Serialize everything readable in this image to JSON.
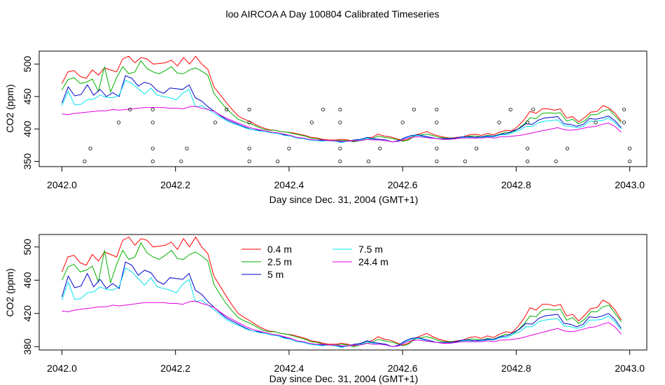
{
  "title": "loo AIRCOA A  Day 100804  Calibrated Timeseries",
  "chart_data": [
    {
      "type": "line",
      "xlabel": "Day since Dec. 31, 2004 (GMT+1)",
      "ylabel": "CO2 (ppm)",
      "xlim": [
        2041.96,
        2043.03
      ],
      "ylim": [
        342,
        520
      ],
      "x_ticks": [
        "2042.0",
        "2042.2",
        "2042.4",
        "2042.6",
        "2042.8",
        "2043.0"
      ],
      "y_ticks": [
        "350",
        "400",
        "450",
        "500"
      ],
      "series": [
        {
          "name": "0.4 m",
          "color": "#ff0000",
          "values": [
            470,
            488,
            490,
            481,
            478,
            491,
            483,
            494,
            491,
            488,
            508,
            512,
            502,
            510,
            508,
            500,
            501,
            502,
            506,
            497,
            510,
            500,
            512,
            500,
            492,
            465,
            453,
            441,
            430,
            420,
            415,
            411,
            406,
            402,
            399,
            398,
            396,
            395,
            394,
            392,
            390,
            387,
            386,
            384,
            383,
            383,
            384,
            383,
            381,
            383,
            386,
            387,
            392,
            389,
            388,
            385,
            382,
            384,
            390,
            393,
            396,
            392,
            389,
            387,
            386,
            387,
            388,
            391,
            392,
            390,
            393,
            391,
            395,
            398,
            397,
            404,
            414,
            427,
            424,
            431,
            431,
            429,
            431,
            417,
            419,
            411,
            418,
            426,
            427,
            436,
            432,
            424,
            412
          ]
        },
        {
          "name": "2.5 m",
          "color": "#00b000",
          "values": [
            460,
            476,
            479,
            470,
            472,
            477,
            458,
            496,
            457,
            479,
            496,
            485,
            488,
            505,
            493,
            488,
            485,
            490,
            496,
            486,
            485,
            491,
            494,
            489,
            483,
            455,
            443,
            432,
            423,
            415,
            411,
            408,
            404,
            400,
            398,
            398,
            396,
            395,
            393,
            391,
            389,
            386,
            385,
            383,
            382,
            382,
            383,
            382,
            380,
            382,
            384,
            385,
            389,
            387,
            386,
            384,
            381,
            383,
            389,
            391,
            392,
            390,
            387,
            386,
            386,
            386,
            387,
            389,
            389,
            388,
            390,
            389,
            392,
            395,
            394,
            400,
            407,
            417,
            416,
            424,
            425,
            424,
            425,
            412,
            415,
            408,
            413,
            422,
            422,
            428,
            430,
            420,
            410
          ]
        },
        {
          "name": "5 m",
          "color": "#0000cc",
          "values": [
            440,
            465,
            451,
            453,
            468,
            452,
            461,
            450,
            456,
            450,
            482,
            478,
            466,
            472,
            469,
            459,
            455,
            463,
            462,
            461,
            468,
            448,
            443,
            434,
            427,
            420,
            414,
            410,
            406,
            402,
            399,
            398,
            396,
            394,
            393,
            391,
            389,
            386,
            385,
            383,
            382,
            382,
            382,
            381,
            380,
            381,
            383,
            384,
            387,
            385,
            384,
            383,
            380,
            382,
            387,
            390,
            391,
            389,
            387,
            385,
            385,
            385,
            386,
            388,
            388,
            387,
            388,
            389,
            389,
            392,
            393,
            397,
            401,
            408,
            407,
            414,
            417,
            418,
            419,
            408,
            407,
            404,
            407,
            416,
            415,
            417,
            420,
            413,
            402
          ]
        },
        {
          "name": "7.5 m",
          "color": "#00e5ee",
          "values": [
            436,
            458,
            437,
            438,
            445,
            446,
            452,
            449,
            448,
            452,
            475,
            470,
            462,
            454,
            463,
            452,
            450,
            448,
            445,
            455,
            461,
            434,
            436,
            430,
            424,
            418,
            412,
            408,
            405,
            401,
            399,
            397,
            396,
            394,
            393,
            390,
            389,
            386,
            385,
            383,
            382,
            381,
            382,
            381,
            379,
            381,
            382,
            383,
            386,
            384,
            383,
            382,
            380,
            381,
            386,
            389,
            390,
            388,
            386,
            385,
            384,
            384,
            385,
            387,
            387,
            386,
            387,
            388,
            388,
            391,
            391,
            395,
            398,
            404,
            404,
            410,
            412,
            413,
            414,
            405,
            404,
            402,
            404,
            412,
            412,
            413,
            417,
            410,
            400
          ]
        },
        {
          "name": "24.4 m",
          "color": "#e000e0",
          "values": [
            423,
            422,
            424,
            425,
            426,
            427,
            428,
            428,
            430,
            429,
            430,
            431,
            432,
            433,
            433,
            433,
            433,
            432,
            432,
            431,
            434,
            435,
            432,
            430,
            427,
            421,
            416,
            412,
            408,
            404,
            401,
            399,
            397,
            395,
            394,
            392,
            390,
            387,
            386,
            384,
            383,
            383,
            382,
            382,
            381,
            381,
            382,
            382,
            384,
            383,
            383,
            382,
            380,
            381,
            385,
            387,
            388,
            387,
            386,
            385,
            384,
            384,
            385,
            386,
            386,
            386,
            386,
            387,
            386,
            388,
            388,
            389,
            390,
            392,
            394,
            396,
            398,
            400,
            402,
            399,
            398,
            399,
            401,
            403,
            404,
            407,
            409,
            404,
            395
          ]
        }
      ],
      "points": [
        {
          "x": 2042.04,
          "y": 350
        },
        {
          "x": 2042.05,
          "y": 370
        },
        {
          "x": 2042.1,
          "y": 410
        },
        {
          "x": 2042.12,
          "y": 430
        },
        {
          "x": 2042.16,
          "y": 350
        },
        {
          "x": 2042.16,
          "y": 370
        },
        {
          "x": 2042.16,
          "y": 410
        },
        {
          "x": 2042.16,
          "y": 430
        },
        {
          "x": 2042.21,
          "y": 350
        },
        {
          "x": 2042.22,
          "y": 370
        },
        {
          "x": 2042.27,
          "y": 410
        },
        {
          "x": 2042.29,
          "y": 430
        },
        {
          "x": 2042.33,
          "y": 350
        },
        {
          "x": 2042.33,
          "y": 370
        },
        {
          "x": 2042.33,
          "y": 410
        },
        {
          "x": 2042.33,
          "y": 430
        },
        {
          "x": 2042.38,
          "y": 350
        },
        {
          "x": 2042.4,
          "y": 370
        },
        {
          "x": 2042.44,
          "y": 410
        },
        {
          "x": 2042.46,
          "y": 430
        },
        {
          "x": 2042.49,
          "y": 350
        },
        {
          "x": 2042.49,
          "y": 370
        },
        {
          "x": 2042.49,
          "y": 410
        },
        {
          "x": 2042.49,
          "y": 430
        },
        {
          "x": 2042.54,
          "y": 350
        },
        {
          "x": 2042.56,
          "y": 370
        },
        {
          "x": 2042.6,
          "y": 410
        },
        {
          "x": 2042.62,
          "y": 430
        },
        {
          "x": 2042.66,
          "y": 350
        },
        {
          "x": 2042.66,
          "y": 370
        },
        {
          "x": 2042.66,
          "y": 410
        },
        {
          "x": 2042.66,
          "y": 430
        },
        {
          "x": 2042.71,
          "y": 350
        },
        {
          "x": 2042.73,
          "y": 370
        },
        {
          "x": 2042.77,
          "y": 410
        },
        {
          "x": 2042.79,
          "y": 430
        },
        {
          "x": 2042.82,
          "y": 350
        },
        {
          "x": 2042.82,
          "y": 370
        },
        {
          "x": 2042.82,
          "y": 410
        },
        {
          "x": 2042.83,
          "y": 430
        },
        {
          "x": 2042.87,
          "y": 350
        },
        {
          "x": 2042.89,
          "y": 370
        },
        {
          "x": 2042.94,
          "y": 410
        },
        {
          "x": 2042.99,
          "y": 430
        },
        {
          "x": 2042.99,
          "y": 410
        },
        {
          "x": 2043.0,
          "y": 370
        },
        {
          "x": 2043.0,
          "y": 350
        }
      ]
    },
    {
      "type": "line",
      "xlabel": "Day since Dec. 31, 2004 (GMT+1)",
      "ylabel": "CO2 (ppm)",
      "xlim": [
        2041.96,
        2043.03
      ],
      "ylim": [
        376,
        515
      ],
      "x_ticks": [
        "2042.0",
        "2042.2",
        "2042.4",
        "2042.6",
        "2042.8",
        "2043.0"
      ],
      "y_ticks": [
        "380",
        "420",
        "460",
        "500"
      ],
      "legend_position": "top-left",
      "legend": [
        "0.4 m",
        "2.5 m",
        "5 m",
        "7.5 m",
        "24.4 m"
      ],
      "same_series_as_top_panel": true
    }
  ]
}
